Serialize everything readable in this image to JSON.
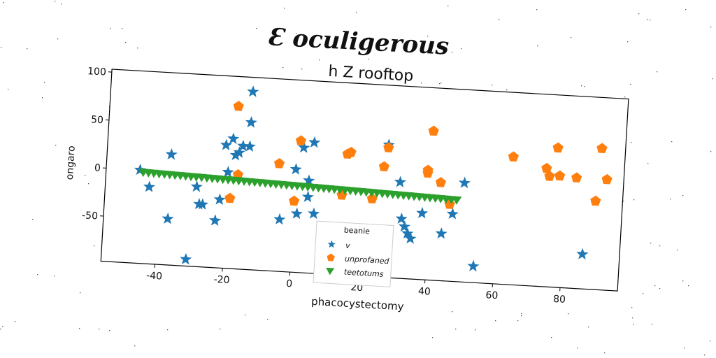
{
  "figure": {
    "suptitle": "Ɛ oculigerous"
  },
  "chart_data": {
    "type": "scatter",
    "title": "h Z rooftop",
    "xlabel": "phacocystectomy",
    "ylabel": "ongaro",
    "xlim": [
      -56,
      97
    ],
    "ylim": [
      -97,
      103
    ],
    "xticks": [
      -40,
      -20,
      0,
      20,
      40,
      60,
      80
    ],
    "yticks": [
      -50,
      0,
      50,
      100
    ],
    "grid": false,
    "legend": {
      "title": "beanie",
      "placement": "lower-center"
    },
    "series": [
      {
        "name": "v",
        "marker": "star",
        "color": "#1f77b4",
        "points": [
          [
            -46,
            0
          ],
          [
            -43,
            -17
          ],
          [
            -37,
            18
          ],
          [
            -37,
            -49
          ],
          [
            -31,
            -90
          ],
          [
            -29,
            -14
          ],
          [
            -28,
            -32
          ],
          [
            -27,
            -32
          ],
          [
            -23,
            -48
          ],
          [
            -22,
            -26
          ],
          [
            -21,
            31
          ],
          [
            -20,
            3
          ],
          [
            -19,
            38
          ],
          [
            -18,
            21
          ],
          [
            -17,
            24
          ],
          [
            -16,
            31
          ],
          [
            -14,
            88
          ],
          [
            -14,
            31
          ],
          [
            -14,
            56
          ],
          [
            -4,
            -43
          ],
          [
            0,
            10
          ],
          [
            1,
            -36
          ],
          [
            2,
            33
          ],
          [
            4,
            -1
          ],
          [
            4,
            -18
          ],
          [
            5,
            39
          ],
          [
            6,
            -35
          ],
          [
            27,
            41
          ],
          [
            31,
            3
          ],
          [
            32,
            -35
          ],
          [
            33,
            -43
          ],
          [
            34,
            -50
          ],
          [
            35,
            -55
          ],
          [
            38,
            -28
          ],
          [
            44,
            -48
          ],
          [
            47,
            -27
          ],
          [
            50,
            6
          ],
          [
            54,
            -80
          ],
          [
            86,
            -61
          ]
        ]
      },
      {
        "name": "unprofaned",
        "marker": "pentagon",
        "color": "#ff7f0e",
        "points": [
          [
            -19,
            -24
          ],
          [
            -18,
            72
          ],
          [
            -17,
            1
          ],
          [
            -5,
            15
          ],
          [
            0,
            -23
          ],
          [
            1,
            40
          ],
          [
            14,
            -14
          ],
          [
            15,
            29
          ],
          [
            16,
            31
          ],
          [
            23,
            -16
          ],
          [
            26,
            18
          ],
          [
            27,
            38
          ],
          [
            39,
            17
          ],
          [
            39,
            14
          ],
          [
            40,
            58
          ],
          [
            43,
            5
          ],
          [
            46,
            -17
          ],
          [
            64,
            36
          ],
          [
            74,
            26
          ],
          [
            75,
            18
          ],
          [
            77,
            48
          ],
          [
            78,
            19
          ],
          [
            83,
            18
          ],
          [
            89,
            -5
          ],
          [
            90,
            50
          ],
          [
            92,
            18
          ]
        ]
      },
      {
        "name": "teetotums",
        "marker": "triangle_down",
        "color": "#2ca02c",
        "x_start": -45,
        "x_end": 48,
        "y_start": -2,
        "y_end": -12,
        "count": 60
      }
    ]
  }
}
